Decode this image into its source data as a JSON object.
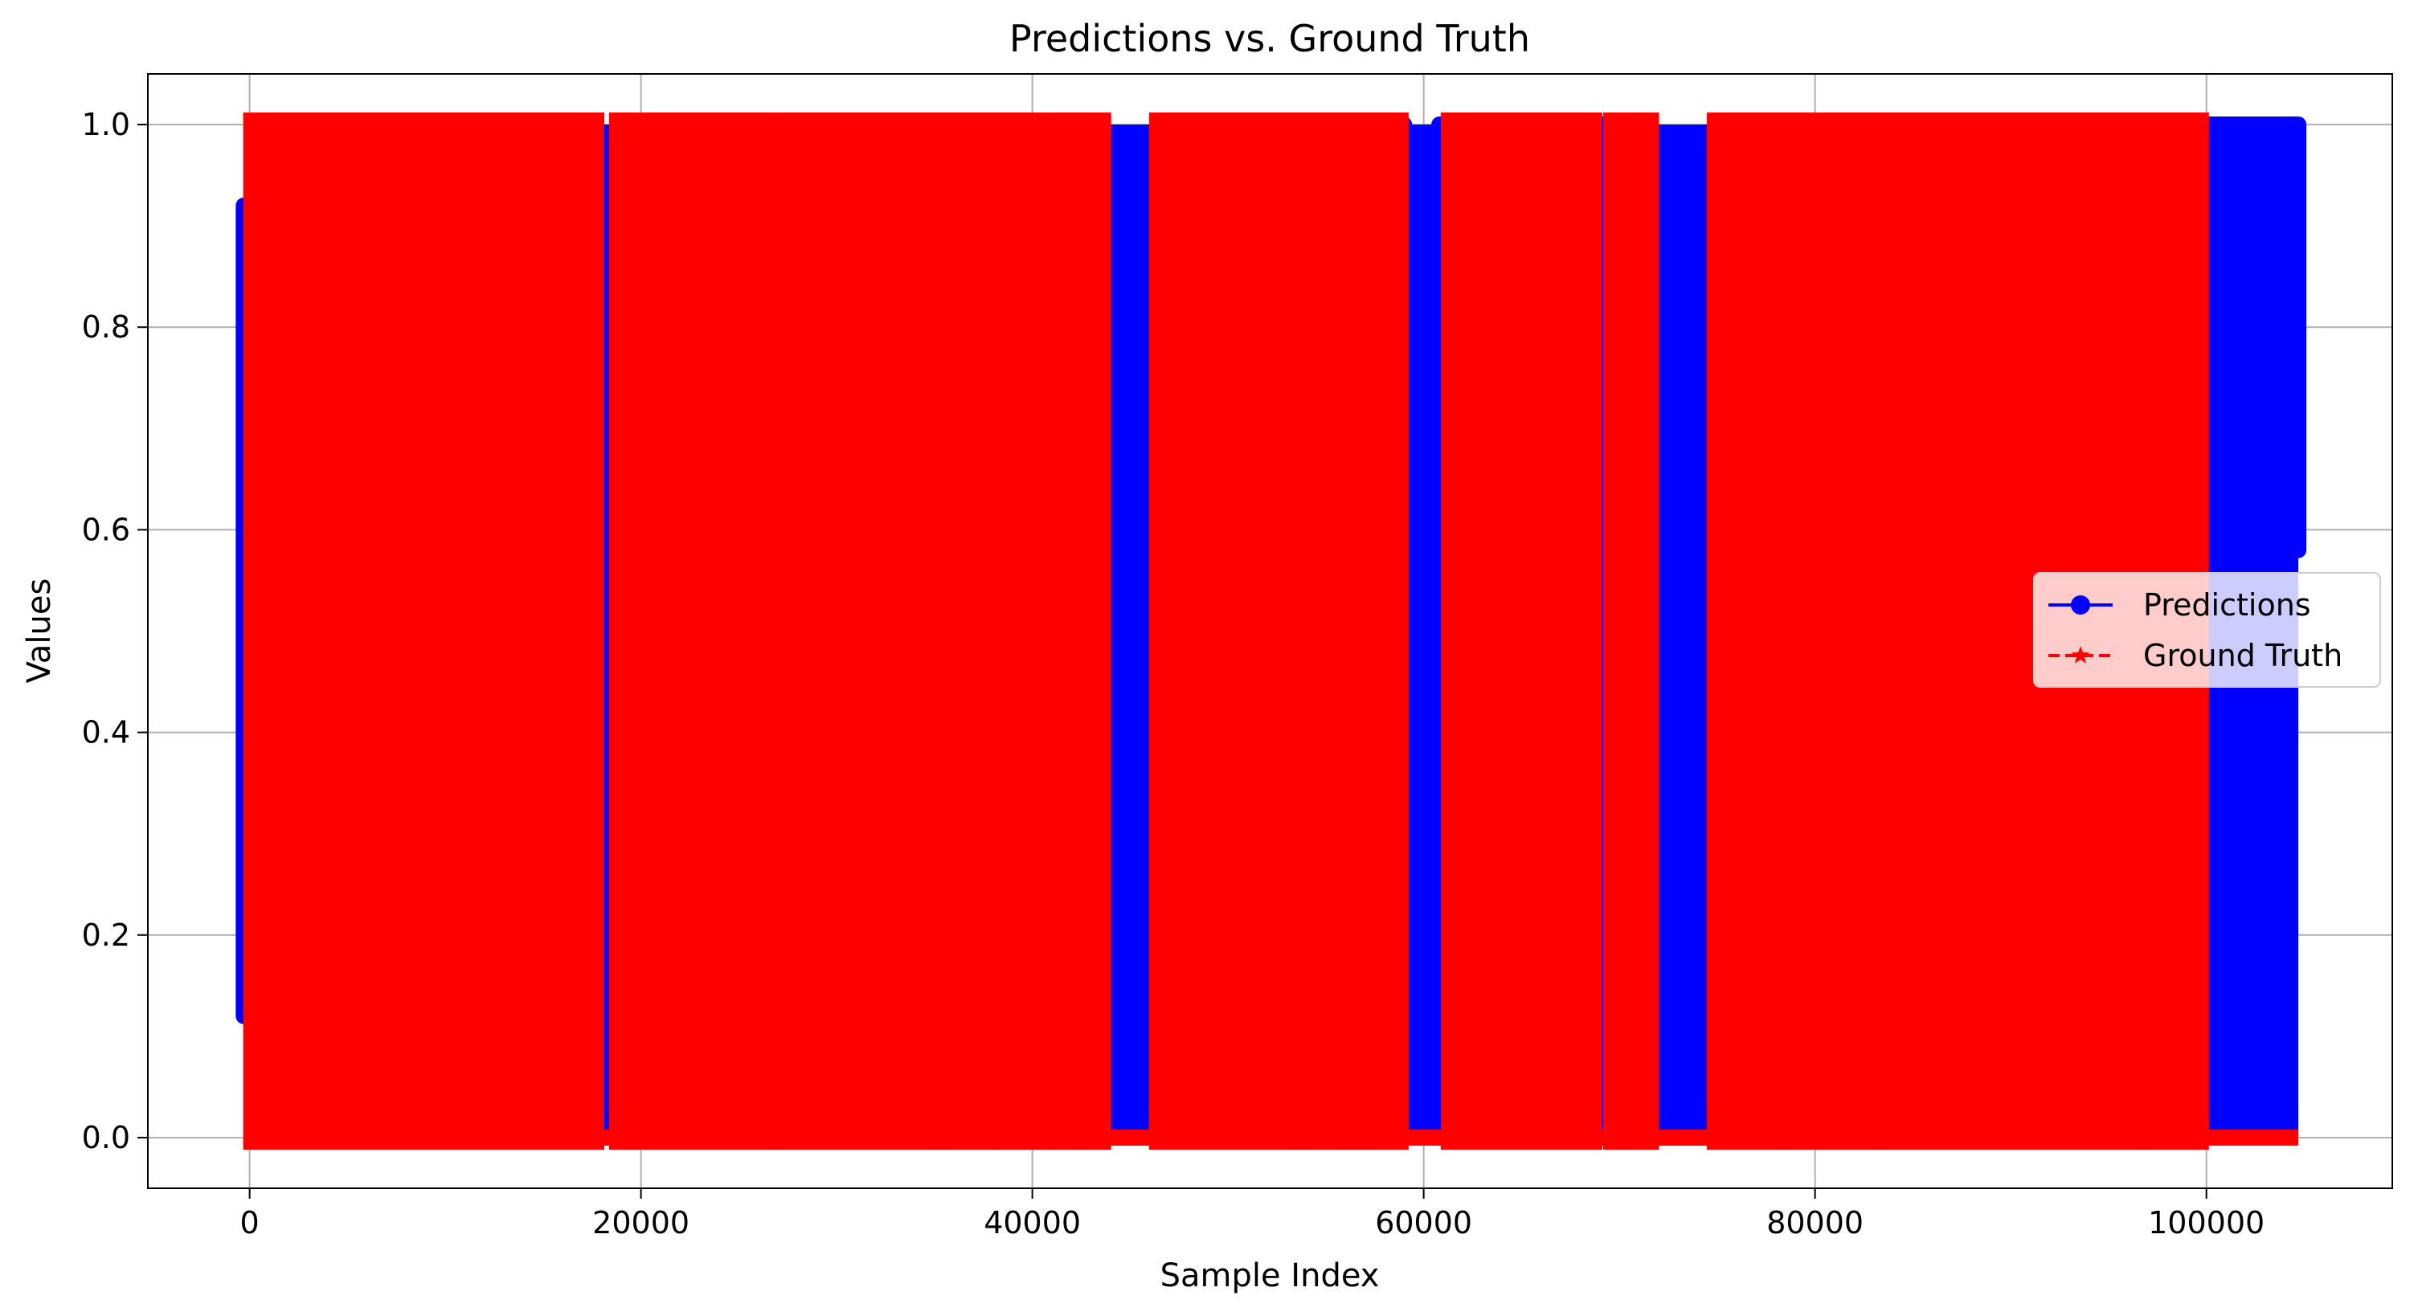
{
  "chart_data": {
    "type": "line",
    "title": "Predictions vs. Ground Truth",
    "xlabel": "Sample Index",
    "ylabel": "Values",
    "xlim": [
      -5200,
      109500
    ],
    "ylim": [
      -0.05,
      1.05
    ],
    "xticks": [
      0,
      20000,
      40000,
      60000,
      80000,
      100000
    ],
    "yticks": [
      0.0,
      0.2,
      0.4,
      0.6,
      0.8,
      1.0
    ],
    "xtick_labels": [
      "0",
      "20000",
      "40000",
      "60000",
      "80000",
      "100000"
    ],
    "ytick_labels": [
      "0.0",
      "0.2",
      "0.4",
      "0.6",
      "0.8",
      "1.0"
    ],
    "grid": true,
    "legend_placement": "center-right",
    "series": [
      {
        "name": "Predictions",
        "color": "#0000ff",
        "marker": "circle",
        "linestyle": "solid",
        "dense_band": {
          "x": [
            -300,
            104700
          ],
          "y": [
            0.0,
            1.0
          ]
        },
        "envelope_segments": [
          {
            "x": [
              -300,
              400
            ],
            "y": [
              0.12,
              0.92
            ]
          },
          {
            "x": [
              38000,
              43800
            ],
            "y": [
              0.0,
              0.98
            ]
          },
          {
            "x": [
              43800,
              46300
            ],
            "y": [
              0.0,
              0.83
            ]
          },
          {
            "x": [
              53500,
              55800
            ],
            "y": [
              0.0,
              1.0
            ]
          },
          {
            "x": [
              55800,
              59000
            ],
            "y": [
              0.0,
              1.0
            ]
          },
          {
            "x": [
              59000,
              60800
            ],
            "y": [
              0.08,
              0.17
            ]
          },
          {
            "x": [
              60800,
              61300
            ],
            "y": [
              0.0,
              1.0
            ]
          },
          {
            "x": [
              68800,
              71200
            ],
            "y": [
              0.0,
              1.0
            ]
          },
          {
            "x": [
              71200,
              75500
            ],
            "y": [
              0.0,
              0.97
            ]
          },
          {
            "x": [
              75500,
              83000
            ],
            "y": [
              0.0,
              0.99
            ]
          },
          {
            "x": [
              96500,
              99800
            ],
            "y": [
              0.0,
              1.0
            ]
          },
          {
            "x": [
              99800,
              104700
            ],
            "y": [
              0.58,
              1.0
            ]
          }
        ]
      },
      {
        "name": "Ground Truth",
        "color": "#ff0000",
        "marker": "star",
        "linestyle": "dashed",
        "values": [
          0,
          1
        ],
        "high_blocks": [
          [
            0,
            17800
          ],
          [
            18700,
            19500
          ],
          [
            19900,
            26600
          ],
          [
            26900,
            35000
          ],
          [
            35500,
            38000
          ],
          [
            38200,
            40700
          ],
          [
            41200,
            42300
          ],
          [
            42600,
            43700
          ],
          [
            46300,
            53500
          ],
          [
            53600,
            55800
          ],
          [
            56100,
            56700
          ],
          [
            57100,
            58900
          ],
          [
            61200,
            68800
          ],
          [
            69500,
            70300
          ],
          [
            70600,
            71700
          ],
          [
            74800,
            78100
          ],
          [
            78400,
            83300
          ],
          [
            83600,
            96600
          ],
          [
            97000,
            99800
          ]
        ],
        "low_span": [
          -200,
          104700
        ]
      }
    ]
  }
}
